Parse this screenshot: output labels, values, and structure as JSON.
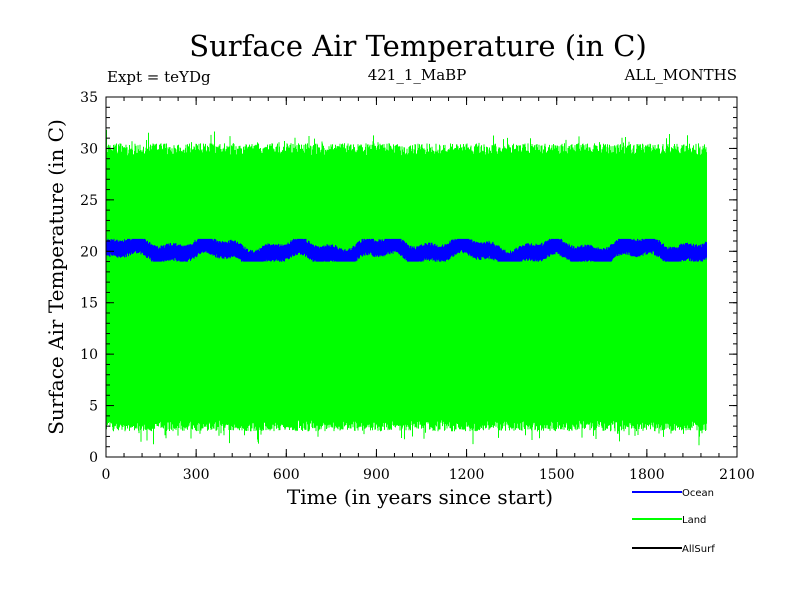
{
  "chart_data": {
    "type": "line",
    "title": "Surface Air Temperature (in C)",
    "subtitle_left": "Expt = teYDg",
    "subtitle_center": "421_1_MaBP",
    "subtitle_right": "ALL_MONTHS",
    "xlabel": "Time (in years since start)",
    "ylabel": "Surface Air Temperature (in C)",
    "xlim": [
      0,
      2100
    ],
    "ylim": [
      0,
      35
    ],
    "x_ticks": [
      0,
      300,
      600,
      900,
      1200,
      1500,
      1800,
      2100
    ],
    "y_ticks": [
      0,
      5,
      10,
      15,
      20,
      25,
      30,
      35
    ],
    "x_tick_labels": [
      "0",
      "300",
      "600",
      "900",
      "1200",
      "1500",
      "1800",
      "2100"
    ],
    "y_tick_labels": [
      "0",
      "5",
      "10",
      "15",
      "20",
      "25",
      "30",
      "35"
    ],
    "series": [
      {
        "name": "Land",
        "color": "#00ff00",
        "x_range": [
          0,
          2000
        ],
        "seasonal_min": 2.5,
        "seasonal_max": 30.5,
        "extreme_min": 1.0,
        "extreme_max": 31.8,
        "description": "monthly values oscillating between about 2.5 and 30.5"
      },
      {
        "name": "Ocean",
        "color": "#0000ff",
        "x_range": [
          0,
          2000
        ],
        "mean": 20.0,
        "band_min": 19.0,
        "band_max": 21.2,
        "description": "monthly values in a narrow band around 20 with slow multidecadal wiggles"
      },
      {
        "name": "AllSurf",
        "color": "#000000",
        "x_range": [
          0,
          2000
        ],
        "description": "not visible (hidden behind Land series)"
      }
    ],
    "legend": {
      "placement": "bottom-right",
      "entries": [
        {
          "label": "Ocean",
          "color": "#0000ff"
        },
        {
          "label": "Land",
          "color": "#00ff00"
        },
        {
          "label": "AllSurf",
          "color": "#000000"
        }
      ]
    }
  }
}
